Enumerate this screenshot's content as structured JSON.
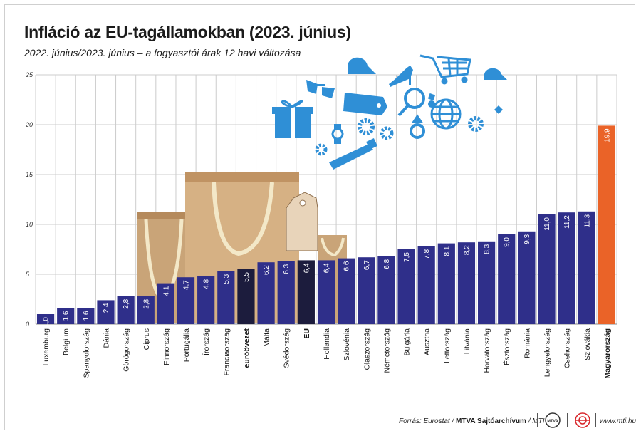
{
  "header": {
    "title": "Infláció az EU-tagállamokban (2023. június)",
    "subtitle": "2022. június/2023. június – a fogyasztói árak 12 havi változása"
  },
  "footer": {
    "source_prefix": "Forrás: Eurostat / ",
    "source_bold": "MTVA Sajtóarchívum",
    "source_suffix": " / MTI",
    "website": "www.mti.hu",
    "logo_text": "MTVA"
  },
  "colors": {
    "bar_default": "#2f2f8a",
    "bar_aggregate": "#1c1c3d",
    "bar_highlight": "#ea6328",
    "grid": "#cccccc",
    "icons": "#2f8fd6"
  },
  "icons": [
    "gift-icon",
    "sunglasses-icon",
    "price-tag-icon",
    "cap-icon",
    "high-heel-icon",
    "shopping-cart-icon",
    "magnifier-icon",
    "watch-icon",
    "gear-icon",
    "ring-icon",
    "globe-icon",
    "tie-icon",
    "pacifier-icon",
    "baseball-cap-icon",
    "shopping-bags-illustration"
  ],
  "chart_data": {
    "type": "bar",
    "title": "Infláció az EU-tagállamokban (2023. június)",
    "subtitle": "2022. június/2023. június – a fogyasztói árak 12 havi változása",
    "categories": [
      "Luxemburg",
      "Belgium",
      "Spanyolország",
      "Dánia",
      "Görögország",
      "Ciprus",
      "Finnország",
      "Portugália",
      "Írország",
      "Franciaország",
      "euróövezet",
      "Málta",
      "Svédország",
      "EU",
      "Hollandia",
      "Szlovénia",
      "Olaszország",
      "Németország",
      "Bulgária",
      "Ausztria",
      "Lettország",
      "Litvánia",
      "Horvátország",
      "Észtország",
      "Románia",
      "Lengyelország",
      "Csehország",
      "Szlovákia",
      "Magyarország"
    ],
    "values": [
      1.0,
      1.6,
      1.6,
      2.4,
      2.8,
      2.8,
      4.1,
      4.7,
      4.8,
      5.3,
      5.5,
      6.2,
      6.3,
      6.4,
      6.4,
      6.6,
      6.7,
      6.8,
      7.5,
      7.8,
      8.1,
      8.2,
      8.3,
      9.0,
      9.3,
      11.0,
      11.2,
      11.3,
      19.9
    ],
    "value_labels": [
      "1,0",
      "1,6",
      "1,6",
      "2,4",
      "2,8",
      "2,8",
      "4,1",
      "4,7",
      "4,8",
      "5,3",
      "5,5",
      "6,2",
      "6,3",
      "6,4",
      "6,4",
      "6,6",
      "6,7",
      "6,8",
      "7,5",
      "7,8",
      "8,1",
      "8,2",
      "8,3",
      "9,0",
      "9,3",
      "11,0",
      "11,2",
      "11,3",
      "19,9"
    ],
    "aggregates": [
      "euróövezet",
      "EU"
    ],
    "highlight": "Magyarország",
    "yticks": [
      0,
      5,
      10,
      15,
      20,
      25
    ],
    "ylim": [
      0,
      25
    ],
    "grid": true,
    "xlabel": "",
    "ylabel": ""
  }
}
